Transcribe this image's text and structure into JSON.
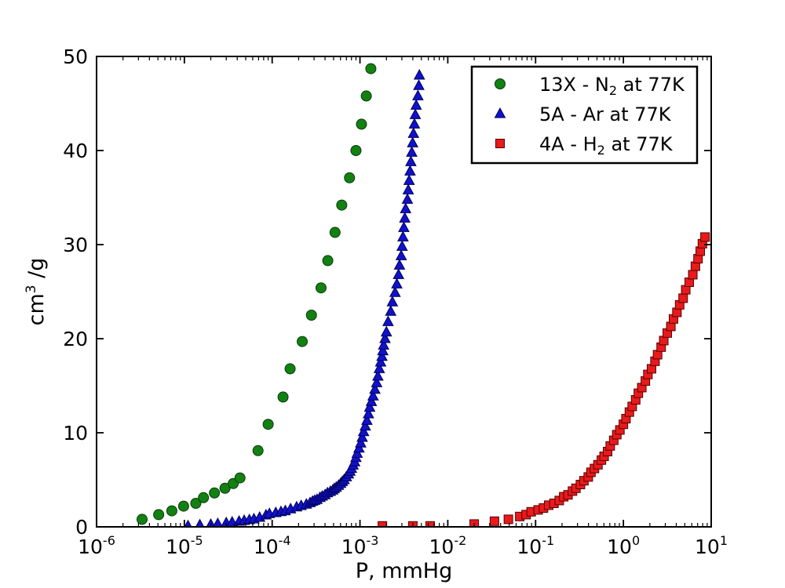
{
  "figure": {
    "background": "#ffffff",
    "axis_color": "#000000",
    "text_color": "#000000"
  },
  "chart_data": {
    "type": "scatter",
    "title": "",
    "xlabel": "P, mmHg",
    "ylabel": "cm³ /g",
    "ylabel_parts": {
      "pre": "cm",
      "sup": "3",
      "post": " /g"
    },
    "xscale": "log",
    "yscale": "linear",
    "xlim": [
      1e-06,
      10
    ],
    "ylim": [
      0,
      50
    ],
    "x_tick_exponents": [
      -6,
      -5,
      -4,
      -3,
      -2,
      -1,
      0,
      1
    ],
    "y_ticks": [
      0,
      10,
      20,
      30,
      40,
      50
    ],
    "grid": false,
    "legend": {
      "position": "upper right",
      "frame": true
    },
    "series": [
      {
        "name": "13X - N2 at 77K",
        "label_parts": {
          "pre": "13X - N",
          "sub": "2",
          "post": " at 77K"
        },
        "marker": "circle",
        "fill": "#128112",
        "edge": "#0a3a0a",
        "points": [
          [
            3.3e-06,
            0.8
          ],
          [
            5.1e-06,
            1.3
          ],
          [
            7.2e-06,
            1.7
          ],
          [
            9.8e-06,
            2.2
          ],
          [
            1.35e-05,
            2.5
          ],
          [
            1.65e-05,
            3.1
          ],
          [
            2.2e-05,
            3.6
          ],
          [
            2.9e-05,
            4.1
          ],
          [
            3.6e-05,
            4.6
          ],
          [
            4.3e-05,
            5.2
          ],
          [
            6.9e-05,
            8.1
          ],
          [
            9e-05,
            10.9
          ],
          [
            0.000133,
            13.8
          ],
          [
            0.00016,
            16.8
          ],
          [
            0.00022,
            19.7
          ],
          [
            0.00028,
            22.5
          ],
          [
            0.00036,
            25.4
          ],
          [
            0.00043,
            28.3
          ],
          [
            0.00052,
            31.3
          ],
          [
            0.00062,
            34.2
          ],
          [
            0.00076,
            37.1
          ],
          [
            0.0009,
            40.0
          ],
          [
            0.00104,
            42.8
          ],
          [
            0.00118,
            45.8
          ],
          [
            0.00133,
            48.7
          ]
        ]
      },
      {
        "name": "5A - Ar at 77K",
        "label_parts": {
          "pre": "5A - Ar at 77K",
          "sub": "",
          "post": ""
        },
        "marker": "triangle",
        "fill": "#1111cc",
        "edge": "#000055",
        "points": [
          [
            1.1e-05,
            0.1
          ],
          [
            1.5e-05,
            0.2
          ],
          [
            2e-05,
            0.25
          ],
          [
            2.4e-05,
            0.33
          ],
          [
            3e-05,
            0.42
          ],
          [
            3.5e-05,
            0.5
          ],
          [
            4.2e-05,
            0.58
          ],
          [
            4.8e-05,
            0.67
          ],
          [
            5.5e-05,
            0.75
          ],
          [
            6.2e-05,
            0.83
          ],
          [
            7.2e-05,
            1.0
          ],
          [
            8.5e-05,
            1.25
          ],
          [
            9.3e-05,
            1.4
          ],
          [
            0.00011,
            1.5
          ],
          [
            0.000126,
            1.6
          ],
          [
            0.000141,
            1.7
          ],
          [
            0.000162,
            1.9
          ],
          [
            0.00019,
            2.1
          ],
          [
            0.000214,
            2.25
          ],
          [
            0.000245,
            2.4
          ],
          [
            0.00027,
            2.55
          ],
          [
            0.000288,
            2.7
          ],
          [
            0.000305,
            2.8
          ],
          [
            0.000324,
            2.9
          ],
          [
            0.00035,
            3.1
          ],
          [
            0.000372,
            3.25
          ],
          [
            0.0004,
            3.4
          ],
          [
            0.000427,
            3.6
          ],
          [
            0.00046,
            3.75
          ],
          [
            0.00049,
            3.9
          ],
          [
            0.00051,
            4.05
          ],
          [
            0.000537,
            4.2
          ],
          [
            0.00057,
            4.4
          ],
          [
            0.000603,
            4.6
          ],
          [
            0.00063,
            4.8
          ],
          [
            0.00066,
            5.0
          ],
          [
            0.0007,
            5.3
          ],
          [
            0.00074,
            5.6
          ],
          [
            0.00077,
            5.9
          ],
          [
            0.0008,
            6.2
          ],
          [
            0.000835,
            6.55
          ],
          [
            0.00087,
            6.9
          ],
          [
            0.0009,
            7.35
          ],
          [
            0.00093,
            7.8
          ],
          [
            0.000975,
            8.35
          ],
          [
            0.00102,
            8.9
          ],
          [
            0.00106,
            9.5
          ],
          [
            0.0011,
            10.1
          ],
          [
            0.00115,
            10.7
          ],
          [
            0.0012,
            11.3
          ],
          [
            0.00125,
            12.0
          ],
          [
            0.00129,
            12.7
          ],
          [
            0.00135,
            13.3
          ],
          [
            0.00141,
            13.9
          ],
          [
            0.00148,
            14.6
          ],
          [
            0.00155,
            15.3
          ],
          [
            0.0016,
            16.0
          ],
          [
            0.00166,
            16.8
          ],
          [
            0.00172,
            17.5
          ],
          [
            0.00178,
            18.1
          ],
          [
            0.00182,
            18.7
          ],
          [
            0.00186,
            19.3
          ],
          [
            0.00193,
            20.0
          ],
          [
            0.002,
            20.7
          ],
          [
            0.00209,
            21.8
          ],
          [
            0.00224,
            22.9
          ],
          [
            0.00234,
            23.9
          ],
          [
            0.00251,
            24.9
          ],
          [
            0.00263,
            25.8
          ],
          [
            0.00275,
            26.8
          ],
          [
            0.00282,
            27.8
          ],
          [
            0.00295,
            28.8
          ],
          [
            0.00302,
            29.8
          ],
          [
            0.00309,
            30.8
          ],
          [
            0.00316,
            31.8
          ],
          [
            0.00324,
            32.8
          ],
          [
            0.00331,
            33.8
          ],
          [
            0.00347,
            34.8
          ],
          [
            0.00355,
            35.8
          ],
          [
            0.00363,
            36.8
          ],
          [
            0.00372,
            37.8
          ],
          [
            0.0038,
            38.8
          ],
          [
            0.00389,
            39.8
          ],
          [
            0.00398,
            40.8
          ],
          [
            0.00407,
            41.8
          ],
          [
            0.00417,
            42.8
          ],
          [
            0.00427,
            43.8
          ],
          [
            0.00437,
            44.8
          ],
          [
            0.00457,
            45.8
          ],
          [
            0.00468,
            46.9
          ],
          [
            0.00475,
            48.0
          ]
        ]
      },
      {
        "name": "4A - H2 at 77K",
        "label_parts": {
          "pre": "4A - H",
          "sub": "2",
          "post": " at 77K"
        },
        "marker": "square",
        "fill": "#e81a1c",
        "edge": "#550000",
        "points": [
          [
            0.0018,
            0.1
          ],
          [
            0.004,
            0.1
          ],
          [
            0.0063,
            0.1
          ],
          [
            0.02,
            0.3
          ],
          [
            0.034,
            0.6
          ],
          [
            0.049,
            0.8
          ],
          [
            0.066,
            1.1
          ],
          [
            0.078,
            1.3
          ],
          [
            0.089,
            1.6
          ],
          [
            0.107,
            1.8
          ],
          [
            0.123,
            2.0
          ],
          [
            0.141,
            2.3
          ],
          [
            0.162,
            2.5
          ],
          [
            0.186,
            2.8
          ],
          [
            0.209,
            3.2
          ],
          [
            0.234,
            3.4
          ],
          [
            0.263,
            3.8
          ],
          [
            0.288,
            4.1
          ],
          [
            0.324,
            4.5
          ],
          [
            0.355,
            4.9
          ],
          [
            0.398,
            5.3
          ],
          [
            0.427,
            5.8
          ],
          [
            0.468,
            6.2
          ],
          [
            0.513,
            6.6
          ],
          [
            0.562,
            7.1
          ],
          [
            0.603,
            7.5
          ],
          [
            0.661,
            8.0
          ],
          [
            0.708,
            8.6
          ],
          [
            0.776,
            9.2
          ],
          [
            0.841,
            9.8
          ],
          [
            0.912,
            10.3
          ],
          [
            1.0,
            10.9
          ],
          [
            1.07,
            11.5
          ],
          [
            1.17,
            12.2
          ],
          [
            1.26,
            12.8
          ],
          [
            1.38,
            13.5
          ],
          [
            1.48,
            14.2
          ],
          [
            1.62,
            14.8
          ],
          [
            1.78,
            15.5
          ],
          [
            1.9,
            16.2
          ],
          [
            2.09,
            16.8
          ],
          [
            2.29,
            17.6
          ],
          [
            2.45,
            18.3
          ],
          [
            2.69,
            19.1
          ],
          [
            2.88,
            19.8
          ],
          [
            3.16,
            20.6
          ],
          [
            3.47,
            21.3
          ],
          [
            3.72,
            22.1
          ],
          [
            4.07,
            22.8
          ],
          [
            4.37,
            23.6
          ],
          [
            4.79,
            24.3
          ],
          [
            5.13,
            25.2
          ],
          [
            5.62,
            26.0
          ],
          [
            6.17,
            26.8
          ],
          [
            6.61,
            27.7
          ],
          [
            7.08,
            28.5
          ],
          [
            7.5,
            29.3
          ],
          [
            7.94,
            30.1
          ],
          [
            8.5,
            30.8
          ]
        ]
      }
    ]
  }
}
